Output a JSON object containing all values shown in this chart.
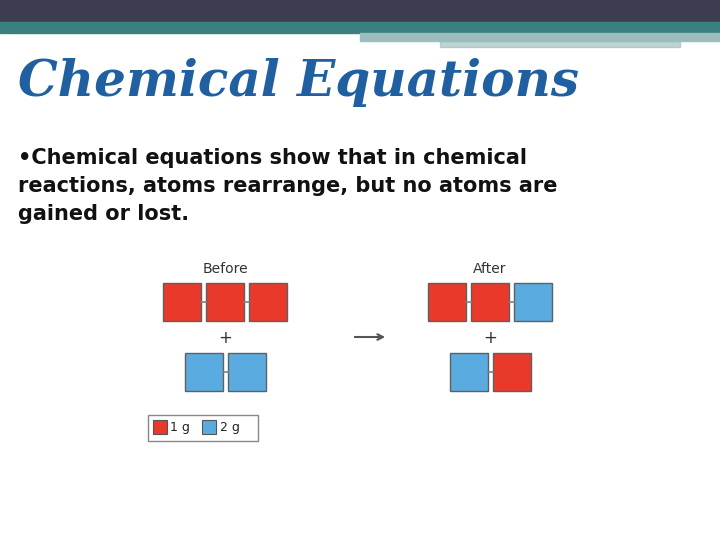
{
  "title": "Chemical Equations",
  "title_color": "#2060A0",
  "bullet_lines": [
    "•Chemical equations show that in chemical",
    "reactions, atoms rearrange, but no atoms are",
    "gained or lost."
  ],
  "bg_color": "#ffffff",
  "header_bar_color1": "#3D3D52",
  "header_bar_color2": "#3A8080",
  "header_bar_color3": "#9BBDBD",
  "red_color": "#E8392A",
  "blue_color": "#5AACE0",
  "before_label": "Before",
  "after_label": "After",
  "legend_1g": "1 g",
  "legend_2g": "2 g"
}
